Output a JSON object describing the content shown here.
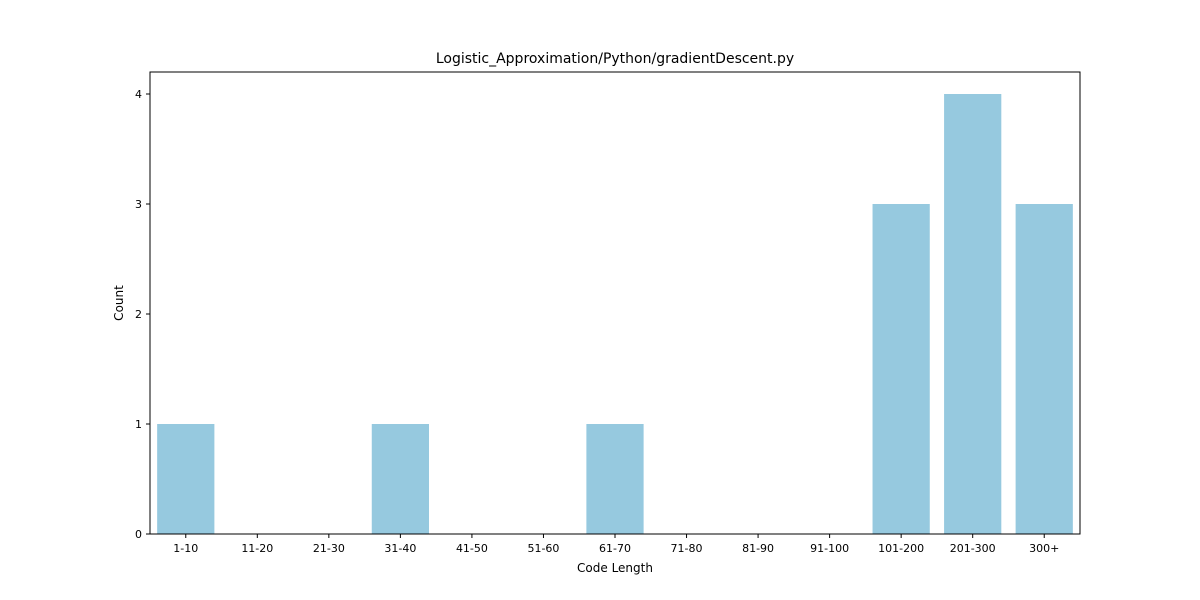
{
  "chart_data": {
    "type": "bar",
    "title": "Logistic_Approximation/Python/gradientDescent.py",
    "xlabel": "Code Length",
    "ylabel": "Count",
    "categories": [
      "1-10",
      "11-20",
      "21-30",
      "31-40",
      "41-50",
      "51-60",
      "61-70",
      "71-80",
      "81-90",
      "91-100",
      "101-200",
      "201-300",
      "300+"
    ],
    "values": [
      1,
      0,
      0,
      1,
      0,
      0,
      1,
      0,
      0,
      0,
      3,
      4,
      3
    ],
    "ylim": [
      0,
      4.2
    ],
    "yticks": [
      0,
      1,
      2,
      3,
      4
    ],
    "bar_color": "#96c9df",
    "grid": false,
    "legend": "none"
  }
}
